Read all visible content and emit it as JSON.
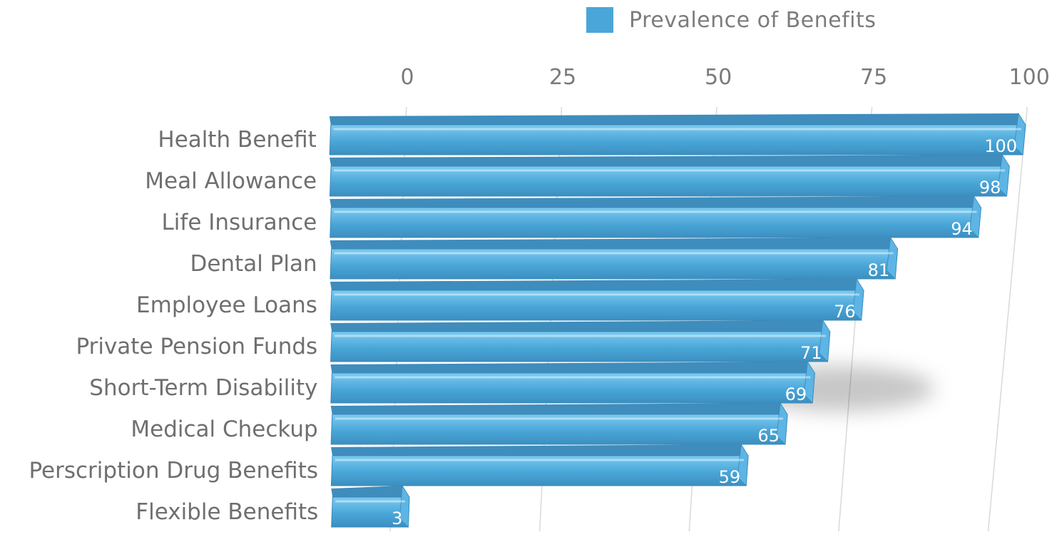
{
  "chart_data": {
    "type": "bar",
    "orientation": "horizontal",
    "title": "",
    "xlabel": "",
    "ylabel": "",
    "xlim": [
      0,
      100
    ],
    "xticks": [
      0,
      25,
      50,
      75,
      100
    ],
    "grid": true,
    "legend_position": "top-right",
    "categories": [
      "Health Benefit",
      "Meal Allowance",
      "Life Insurance",
      "Dental Plan",
      "Employee Loans",
      "Private Pension Funds",
      "Short-Term Disability",
      "Medical Checkup",
      "Perscription Drug Benefits",
      "Flexible Benefits"
    ],
    "series": [
      {
        "name": "Prevalence of Benefits",
        "color": "#4aa6d8",
        "values": [
          100,
          98,
          94,
          81,
          76,
          71,
          69,
          65,
          59,
          3
        ]
      }
    ]
  }
}
